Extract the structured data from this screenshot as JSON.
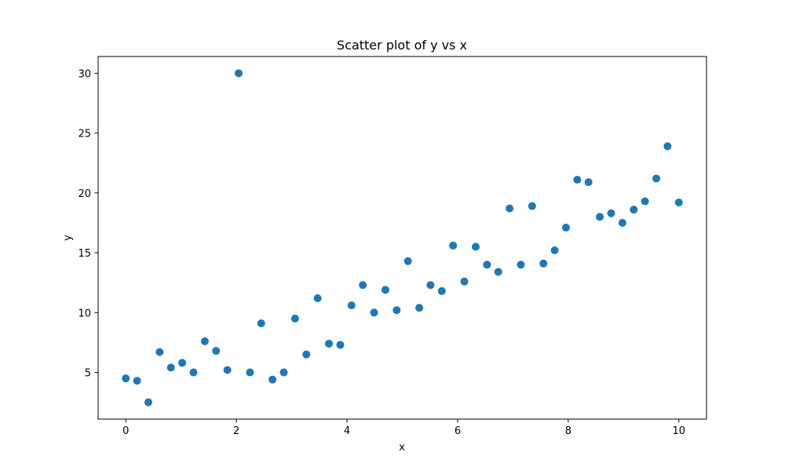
{
  "chart_data": {
    "type": "scatter",
    "title": "Scatter plot of y vs x",
    "xlabel": "x",
    "ylabel": "y",
    "xlim": [
      -0.5,
      10.5
    ],
    "ylim": [
      1.1,
      31.4
    ],
    "xticks": [
      0,
      2,
      4,
      6,
      8,
      10
    ],
    "yticks": [
      5,
      10,
      15,
      20,
      25,
      30
    ],
    "grid": false,
    "legend": "none",
    "marker_color": "#1f77b4",
    "series": [
      {
        "x": [
          0.0,
          0.204,
          0.408,
          0.612,
          0.816,
          1.02,
          1.224,
          1.429,
          1.633,
          1.837,
          2.041,
          2.245,
          2.449,
          2.653,
          2.857,
          3.061,
          3.265,
          3.469,
          3.673,
          3.878,
          4.082,
          4.286,
          4.49,
          4.694,
          4.898,
          5.102,
          5.306,
          5.51,
          5.714,
          5.918,
          6.122,
          6.327,
          6.531,
          6.735,
          6.939,
          7.143,
          7.347,
          7.551,
          7.755,
          7.959,
          8.163,
          8.367,
          8.571,
          8.776,
          8.98,
          9.184,
          9.388,
          9.592,
          9.796,
          10.0
        ],
        "y": [
          4.5,
          4.3,
          2.5,
          6.7,
          5.4,
          5.8,
          5.0,
          7.6,
          6.8,
          5.2,
          30.0,
          5.0,
          9.1,
          4.4,
          5.0,
          9.5,
          6.5,
          11.2,
          7.4,
          7.3,
          10.6,
          12.3,
          10.0,
          11.9,
          10.2,
          14.3,
          10.4,
          12.3,
          11.8,
          15.6,
          12.6,
          15.5,
          14.0,
          13.4,
          18.7,
          14.0,
          18.9,
          14.1,
          15.2,
          17.1,
          21.1,
          20.9,
          18.0,
          18.3,
          17.5,
          18.6,
          19.3,
          21.2,
          23.9,
          19.2
        ]
      }
    ]
  }
}
